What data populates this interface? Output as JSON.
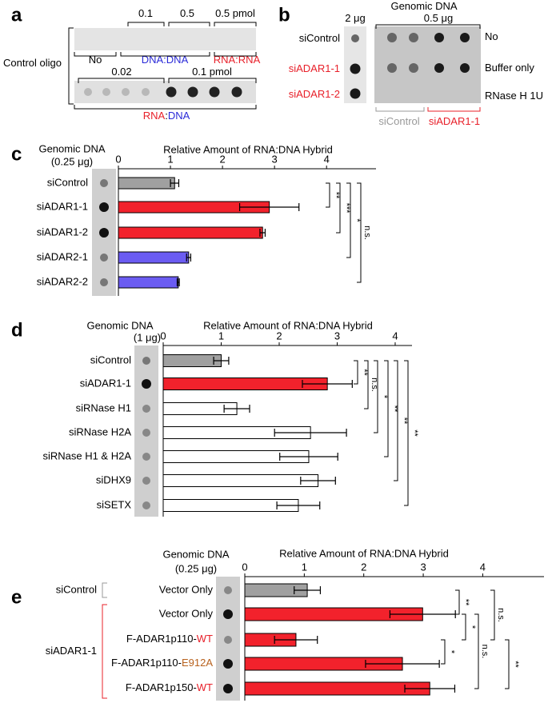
{
  "panel_a": {
    "letter": "a",
    "labels": [
      {
        "segments": [
          "0.1"
        ],
        "colors": [
          "#000"
        ]
      },
      {
        "segments": [
          "0.5"
        ],
        "colors": [
          "#000"
        ]
      },
      {
        "segments": [
          "0.5 pmol"
        ],
        "colors": [
          "#000"
        ]
      },
      {
        "segments": [
          "No"
        ],
        "colors": [
          "#000"
        ]
      },
      {
        "segments": [
          "DNA:DNA"
        ],
        "colors": [
          "#2a2ad8"
        ]
      },
      {
        "segments": [
          "RNA:RNA"
        ],
        "colors": [
          "#e8202a"
        ]
      },
      {
        "segments": [
          "Control oligo"
        ],
        "colors": [
          "#000"
        ]
      },
      {
        "segments": [
          "0.02"
        ],
        "colors": [
          "#000"
        ]
      },
      {
        "segments": [
          "0.1 pmol"
        ],
        "colors": [
          "#000"
        ]
      },
      {
        "segments": [
          "RNA",
          ":",
          "DNA"
        ],
        "colors": [
          "#e8202a",
          "#000",
          "#2a2ad8"
        ]
      }
    ]
  },
  "panel_b": {
    "letter": "b",
    "labels": [
      {
        "segments": [
          "Genomic DNA"
        ],
        "colors": [
          "#000"
        ]
      },
      {
        "segments": [
          "2 μg"
        ],
        "colors": [
          "#000"
        ]
      },
      {
        "segments": [
          "0.5 μg"
        ],
        "colors": [
          "#000"
        ]
      },
      {
        "segments": [
          "siControl"
        ],
        "colors": [
          "#000"
        ]
      },
      {
        "segments": [
          "siADAR1-1"
        ],
        "colors": [
          "#e8202a"
        ]
      },
      {
        "segments": [
          "siADAR1-2"
        ],
        "colors": [
          "#e8202a"
        ]
      },
      {
        "segments": [
          "No"
        ],
        "colors": [
          "#000"
        ]
      },
      {
        "segments": [
          "Buffer only"
        ],
        "colors": [
          "#000"
        ]
      },
      {
        "segments": [
          "RNase H 1U"
        ],
        "colors": [
          "#000"
        ]
      },
      {
        "segments": [
          "siControl"
        ],
        "colors": [
          "#999999"
        ]
      },
      {
        "segments": [
          "siADAR1-1"
        ],
        "colors": [
          "#e8202a"
        ]
      }
    ]
  },
  "chart_data": [
    {
      "type": "bar",
      "orientation": "horizontal",
      "panel": "c",
      "title": "Relative Amount of RNA:DNA Hybrid",
      "blot_label": [
        "Genomic DNA",
        "(0.25 μg)"
      ],
      "categories": [
        "siControl",
        "siADAR1-1",
        "siADAR1-2",
        "siADAR2-1",
        "siADAR2-2"
      ],
      "label_colors": [
        "#999999",
        "#e8202a",
        "#e8202a",
        "#2a2ad8",
        "#2a2ad8"
      ],
      "values": [
        1.08,
        2.9,
        2.77,
        1.35,
        1.15
      ],
      "errors": [
        0.08,
        0.57,
        0.05,
        0.04,
        0.02
      ],
      "colors": [
        "#a0a0a0",
        "#f2222c",
        "#f2222c",
        "#6b5cf2",
        "#6b5cf2"
      ],
      "xlim": [
        0,
        4.95
      ],
      "xticks": [
        0,
        1,
        2,
        3,
        4
      ],
      "significance": [
        "**",
        "***",
        "*",
        "n.s."
      ]
    },
    {
      "type": "bar",
      "orientation": "horizontal",
      "panel": "d",
      "title": "Relative Amount of RNA:DNA Hybrid",
      "blot_label": [
        "Genomic DNA",
        "(1 μg)"
      ],
      "categories": [
        "siControl",
        "siADAR1-1",
        "siRNase H1",
        "siRNase H2A",
        "siRNase H1 & H2A",
        "siDHX9",
        "siSETX"
      ],
      "label_colors": [
        "#999999",
        "#e8202a",
        "#000",
        "#000",
        "#000",
        "#000",
        "#000"
      ],
      "values": [
        1.0,
        2.83,
        1.27,
        2.54,
        2.51,
        2.67,
        2.33
      ],
      "errors": [
        0.13,
        0.43,
        0.22,
        0.62,
        0.5,
        0.3,
        0.37
      ],
      "colors": [
        "#a0a0a0",
        "#f2222c",
        "#ffffff",
        "#ffffff",
        "#ffffff",
        "#ffffff",
        "#ffffff"
      ],
      "xlim": [
        0,
        4.29
      ],
      "xticks": [
        0,
        1,
        2,
        3,
        4
      ],
      "significance": [
        "**",
        "n.s.",
        "*",
        "**",
        "**",
        "**"
      ]
    },
    {
      "type": "bar",
      "orientation": "horizontal",
      "panel": "e",
      "title": "Relative Amount of RNA:DNA Hybrid",
      "blot_label": [
        "Genomic DNA",
        "(0.25 μg)"
      ],
      "categories": [
        "Vector Only",
        "Vector Only",
        "F-ADAR1p110-WT",
        "F-ADAR1p110-E912A",
        "F-ADAR1p150-WT"
      ],
      "label_colors": [
        "#000",
        "#000",
        "#000",
        "#000",
        "#000"
      ],
      "suffix_colors": [
        null,
        null,
        "#e8202a",
        "#b8621e",
        "#e8202a"
      ],
      "groups": [
        {
          "name": "siControl",
          "color": "#999999"
        },
        {
          "name": "siADAR1-1",
          "color": "#e8202a"
        }
      ],
      "values": [
        1.05,
        2.99,
        0.86,
        2.65,
        3.11
      ],
      "errors": [
        0.22,
        0.55,
        0.36,
        0.62,
        0.42
      ],
      "colors": [
        "#a0a0a0",
        "#f2222c",
        "#f2222c",
        "#f2222c",
        "#f2222c"
      ],
      "xlim": [
        0,
        5.03
      ],
      "xticks": [
        0,
        1,
        2,
        3,
        4
      ],
      "significance": [
        "**",
        "*",
        "*",
        "n.s.",
        "n.s.",
        "**"
      ]
    }
  ]
}
